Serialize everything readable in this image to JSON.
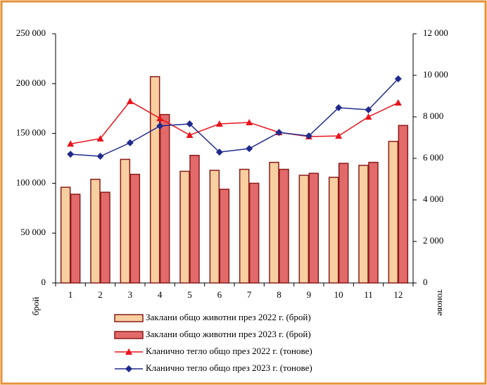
{
  "chart_data": {
    "type": "bar-line",
    "categories": [
      "1",
      "2",
      "3",
      "4",
      "5",
      "6",
      "7",
      "8",
      "9",
      "10",
      "11",
      "12"
    ],
    "y_label": "брой",
    "y2_label": "тонове",
    "ylim": [
      0,
      250000
    ],
    "yticks": [
      {
        "value": 0,
        "label": "0"
      },
      {
        "value": 50000,
        "label": "50 000"
      },
      {
        "value": 100000,
        "label": "100 000"
      },
      {
        "value": 150000,
        "label": "150 000"
      },
      {
        "value": 200000,
        "label": "200 000"
      },
      {
        "value": 250000,
        "label": "250 000"
      }
    ],
    "y2lim": [
      0,
      12000
    ],
    "y2ticks": [
      {
        "value": 0,
        "label": "0"
      },
      {
        "value": 2000,
        "label": "2 000"
      },
      {
        "value": 4000,
        "label": "4 000"
      },
      {
        "value": 6000,
        "label": "6 000"
      },
      {
        "value": 8000,
        "label": "8 000"
      },
      {
        "value": 10000,
        "label": "10 000"
      },
      {
        "value": 12000,
        "label": "12 000"
      }
    ],
    "series": [
      {
        "name": "Заклани общо животни през 2022 г. (брой)",
        "type": "bar",
        "color": "#f8cfa0",
        "values": [
          96000,
          104000,
          124000,
          207000,
          112000,
          113000,
          114000,
          121000,
          108000,
          106000,
          118000,
          142000
        ]
      },
      {
        "name": "Заклани общо животни през 2023 г. (брой)",
        "type": "bar",
        "color": "#e26a6a",
        "values": [
          89000,
          91000,
          109000,
          169000,
          128000,
          94000,
          100000,
          114000,
          110000,
          120000,
          121000,
          158000
        ]
      },
      {
        "name": "Кланично тегло общо през 2022 г. (тонове)",
        "type": "line",
        "axis": "y2",
        "marker": "triangle",
        "color": "#e8141c",
        "values": [
          6700,
          6950,
          8750,
          7930,
          7120,
          7660,
          7730,
          7250,
          7050,
          7080,
          8000,
          8680
        ]
      },
      {
        "name": "Кланично тегло общо през 2023 г. (тонове)",
        "type": "line",
        "axis": "y2",
        "marker": "diamond",
        "color": "#1f2a8c",
        "values": [
          6200,
          6100,
          6750,
          7560,
          7660,
          6300,
          6470,
          7250,
          7080,
          8440,
          8340,
          9830
        ]
      }
    ]
  }
}
